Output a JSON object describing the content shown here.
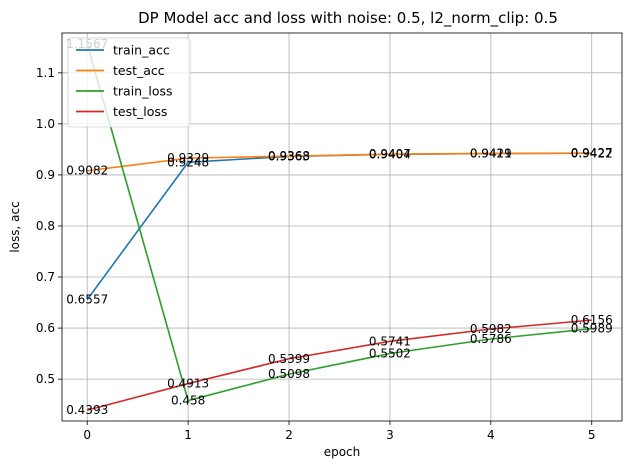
{
  "chart_data": {
    "type": "line",
    "title": "DP Model acc and loss with noise: 0.5, l2_norm_clip: 0.5",
    "xlabel": "epoch",
    "ylabel": "loss, acc",
    "x": [
      0,
      1,
      2,
      3,
      4,
      5
    ],
    "xlim": [
      -0.25,
      5.3
    ],
    "ylim": [
      0.418,
      1.178
    ],
    "xticks": [
      0,
      1,
      2,
      3,
      4,
      5
    ],
    "yticks": [
      0.5,
      0.6,
      0.7,
      0.8,
      0.9,
      1.0,
      1.1
    ],
    "ytick_labels": [
      "0.5",
      "0.6",
      "0.7",
      "0.8",
      "0.9",
      "1.0",
      "1.1"
    ],
    "grid": true,
    "legend_position": "top-left",
    "series": [
      {
        "name": "train_acc",
        "color": "#1f77b4",
        "values": [
          0.6557,
          0.9248,
          0.9363,
          0.9404,
          0.9419,
          0.9427
        ],
        "labels": [
          "0.6557",
          "0.9248",
          "0.9363",
          "0.9404",
          "0.9419",
          "0.9427"
        ]
      },
      {
        "name": "test_acc",
        "color": "#ff7f0e",
        "values": [
          0.9082,
          0.9329,
          0.9368,
          0.9407,
          0.9421,
          0.9422
        ],
        "labels": [
          "0.9082",
          "0.9329",
          "0.9368",
          "0.9407",
          "0.9421",
          "0.9422"
        ]
      },
      {
        "name": "train_loss",
        "color": "#2ca02c",
        "values": [
          1.1567,
          0.458,
          0.5098,
          0.5502,
          0.5786,
          0.5989
        ],
        "labels": [
          "1.1567",
          "0.458",
          "0.5098",
          "0.5502",
          "0.5786",
          "0.5989"
        ]
      },
      {
        "name": "test_loss",
        "color": "#d62728",
        "values": [
          0.4393,
          0.4913,
          0.5399,
          0.5741,
          0.5982,
          0.6156
        ],
        "labels": [
          "0.4393",
          "0.4913",
          "0.5399",
          "0.5741",
          "0.5982",
          "0.6156"
        ]
      }
    ]
  }
}
